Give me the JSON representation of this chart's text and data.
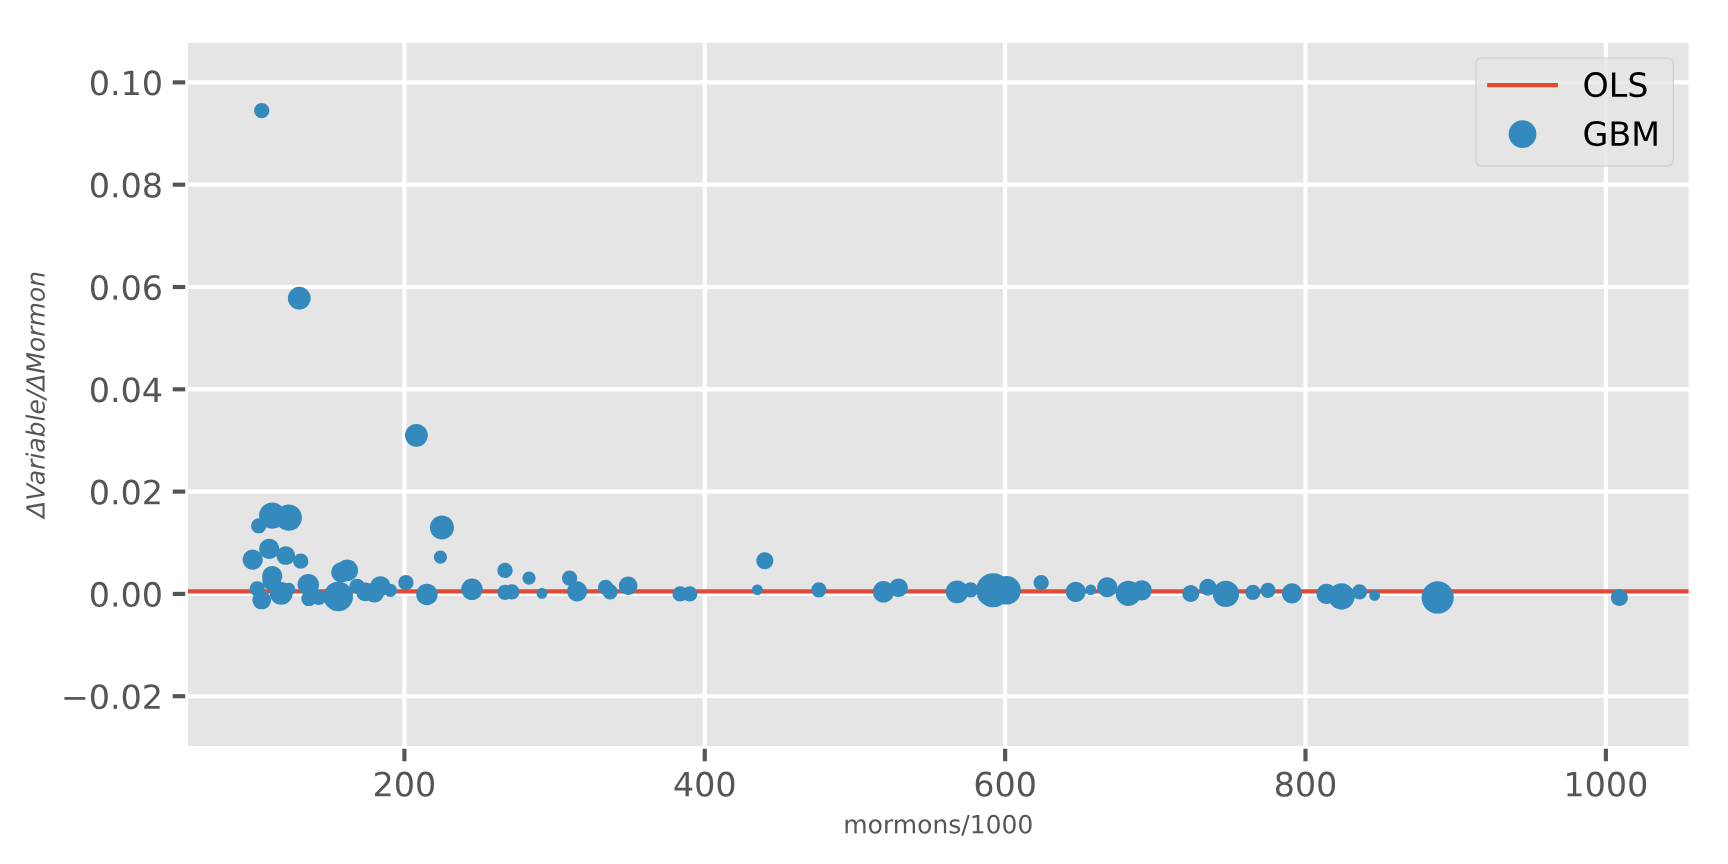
{
  "chart_data": {
    "type": "bubble",
    "xlabel": "mormons/1000",
    "ylabel": "ΔVariable/ΔMormon",
    "xlim": [
      55,
      1056
    ],
    "ylim": [
      -0.03,
      0.108
    ],
    "xticks": [
      200,
      400,
      600,
      800,
      1000
    ],
    "yticks": [
      {
        "value": -0.02,
        "label": "−0.02"
      },
      {
        "value": 0.0,
        "label": "0.00"
      },
      {
        "value": 0.02,
        "label": "0.02"
      },
      {
        "value": 0.04,
        "label": "0.04"
      },
      {
        "value": 0.06,
        "label": "0.06"
      },
      {
        "value": 0.08,
        "label": "0.08"
      },
      {
        "value": 0.1,
        "label": "0.10"
      }
    ],
    "grid": true,
    "legend": "top right",
    "series": [
      {
        "name": "OLS",
        "type": "line",
        "color": "#e24a33",
        "x": [
          55,
          1056
        ],
        "values": [
          0.0005,
          0.0005
        ]
      },
      {
        "name": "GBM",
        "color": "#348abd",
        "x": [
          105,
          130,
          208,
          225,
          224,
          112,
          123,
          103,
          110,
          99,
          121,
          131,
          112,
          111.6,
          102,
          105,
          118,
          123,
          136,
          136.4,
          143,
          156,
          158,
          162,
          168.5,
          174,
          180,
          184,
          190.7,
          201,
          215,
          245,
          267,
          267,
          271.6,
          283,
          291.6,
          310,
          315,
          334,
          337,
          349,
          383.6,
          390,
          435,
          440,
          476,
          519,
          529,
          568,
          577,
          592,
          601,
          624,
          647,
          657,
          668,
          682,
          691,
          723.6,
          735,
          747,
          765,
          775,
          791,
          814,
          824,
          836,
          846,
          888,
          1009
        ],
        "values": [
          0.0945,
          0.0578,
          0.031,
          0.013,
          0.0072,
          0.0153,
          0.0149,
          0.0133,
          0.0088,
          0.0067,
          0.0075,
          0.0064,
          0.0035,
          0.0025,
          0.001,
          -0.0012,
          0.0001,
          0.0009,
          0.0018,
          -0.0009,
          -0.0007,
          -0.0005,
          0.0042,
          0.0046,
          0.0015,
          0.0004,
          0.0003,
          0.0015,
          0.0007,
          0.0022,
          -0.0001,
          0.0009,
          0.0046,
          0.0003,
          0.0004,
          0.0031,
          0.0001,
          0.0031,
          0.0005,
          0.0013,
          0.0004,
          0.0016,
          0.0,
          0.0,
          0.0008,
          0.0065,
          0.0008,
          0.0004,
          0.0012,
          0.0004,
          0.0008,
          0.0007,
          0.0007,
          0.0022,
          0.0004,
          0.0008,
          0.0013,
          0.0001,
          0.0007,
          0.0001,
          0.0013,
          0.0,
          0.0003,
          0.0007,
          0.0001,
          0.0,
          -0.0005,
          0.0004,
          -0.0003,
          -0.0007,
          -0.0007
        ],
        "sizes": [
          0.2,
          0.45,
          0.45,
          0.5,
          0.15,
          0.6,
          0.6,
          0.2,
          0.35,
          0.35,
          0.3,
          0.2,
          0.35,
          0.3,
          0.2,
          0.3,
          0.45,
          0.15,
          0.4,
          0.2,
          0.2,
          0.75,
          0.35,
          0.4,
          0.2,
          0.3,
          0.35,
          0.35,
          0.15,
          0.2,
          0.4,
          0.4,
          0.2,
          0.2,
          0.2,
          0.15,
          0.1,
          0.2,
          0.35,
          0.2,
          0.2,
          0.3,
          0.2,
          0.2,
          0.1,
          0.25,
          0.2,
          0.4,
          0.3,
          0.45,
          0.2,
          1.0,
          0.7,
          0.2,
          0.35,
          0.1,
          0.35,
          0.55,
          0.35,
          0.25,
          0.25,
          0.6,
          0.2,
          0.2,
          0.35,
          0.35,
          0.6,
          0.2,
          0.1,
          0.9,
          0.25
        ]
      }
    ]
  }
}
